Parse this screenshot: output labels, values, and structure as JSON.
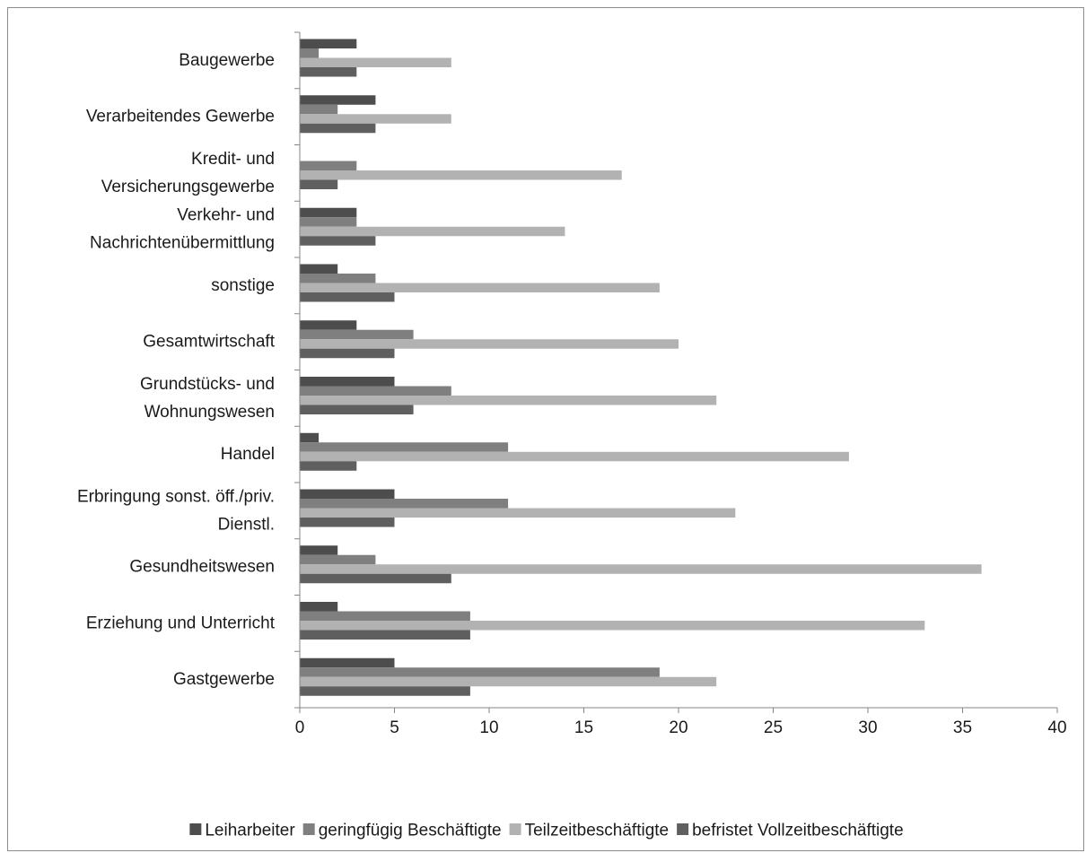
{
  "chart_data": {
    "type": "bar",
    "orientation": "horizontal",
    "categories": [
      [
        "Baugewerbe"
      ],
      [
        "Verarbeitendes Gewerbe"
      ],
      [
        "Kredit- und",
        "Versicherungsgewerbe"
      ],
      [
        "Verkehr- und",
        "Nachrichtenübermittlung"
      ],
      [
        "sonstige"
      ],
      [
        "Gesamtwirtschaft"
      ],
      [
        "Grundstücks- und",
        "Wohnungswesen"
      ],
      [
        "Handel"
      ],
      [
        "Erbringung sonst. öff./priv.",
        "Dienstl."
      ],
      [
        "Gesundheitswesen"
      ],
      [
        "Erziehung und Unterricht"
      ],
      [
        "Gastgewerbe"
      ]
    ],
    "series": [
      {
        "name": "Leiharbeiter",
        "color": "#4d4d4d",
        "values": [
          3,
          4,
          0,
          3,
          2,
          3,
          5,
          1,
          5,
          2,
          2,
          5
        ]
      },
      {
        "name": "geringfügig Beschäftigte",
        "color": "#7f7f7f",
        "values": [
          1,
          2,
          3,
          3,
          4,
          6,
          8,
          11,
          11,
          4,
          9,
          19
        ]
      },
      {
        "name": "Teilzeitbeschäftigte",
        "color": "#b2b2b2",
        "values": [
          8,
          8,
          17,
          14,
          19,
          20,
          22,
          29,
          23,
          36,
          33,
          22
        ]
      },
      {
        "name": "befristet Vollzeitbeschäftigte",
        "color": "#5f5f5f",
        "values": [
          3,
          4,
          2,
          4,
          5,
          5,
          6,
          3,
          5,
          8,
          9,
          9
        ]
      }
    ],
    "x_ticks": [
      "0",
      "5",
      "10",
      "15",
      "20",
      "25",
      "30",
      "35",
      "40"
    ],
    "xlim": [
      0,
      40
    ],
    "grid": false,
    "legend_position": "bottom"
  }
}
